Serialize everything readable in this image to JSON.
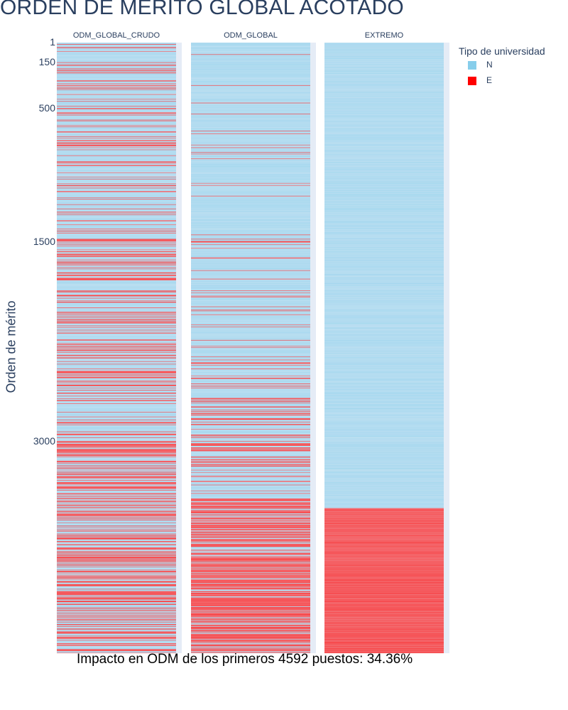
{
  "title": "ORDEN DE MÉRITO GLOBAL ACOTADO",
  "footer": "Impacto en ODM de los primeros 4592 puestos: 34.36%",
  "chart_data": {
    "type": "heatmap",
    "ylabel": "Orden de mérito",
    "y_tick_labels": [
      "1",
      "150",
      "500",
      "1500",
      "3000"
    ],
    "y_tick_values": [
      1,
      150,
      500,
      1500,
      3000
    ],
    "y_range": [
      1,
      4592
    ],
    "y_reversed": true,
    "columns": [
      {
        "name": "ODM_GLOBAL_CRUDO",
        "pattern": "mixed",
        "share_E_by_rank_band": [
          {
            "from": 1,
            "to": 1500,
            "share_E": 0.25
          },
          {
            "from": 1500,
            "to": 3000,
            "share_E": 0.3
          },
          {
            "from": 3000,
            "to": 4592,
            "share_E": 0.45
          }
        ]
      },
      {
        "name": "ODM_GLOBAL",
        "pattern": "mixed",
        "share_E_by_rank_band": [
          {
            "from": 1,
            "to": 1500,
            "share_E": 0.04
          },
          {
            "from": 1500,
            "to": 2400,
            "share_E": 0.1
          },
          {
            "from": 2400,
            "to": 3450,
            "share_E": 0.25
          },
          {
            "from": 3450,
            "to": 4592,
            "share_E": 0.75
          }
        ]
      },
      {
        "name": "EXTREMO",
        "pattern": "segregated",
        "E_from_rank": 3500
      }
    ],
    "legend": {
      "title": "Tipo de universidad",
      "placement": "top-right",
      "items": [
        {
          "label": "N",
          "color": "#87ceeb"
        },
        {
          "label": "E",
          "color": "#ff0000"
        }
      ]
    },
    "colors": {
      "N": "#87ceeb",
      "E": "#ff0000",
      "plot_bg": "#e5ecf6"
    }
  }
}
